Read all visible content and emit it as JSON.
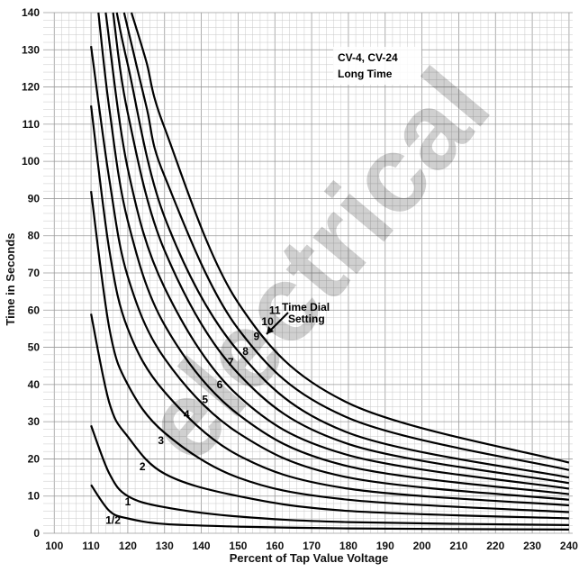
{
  "chart_data": {
    "type": "line",
    "title": "CV-4, CV-24",
    "subtitle": "Long Time",
    "xlabel": "Percent of Tap Value Voltage",
    "ylabel": "Time in Seconds",
    "xlim": [
      97,
      241
    ],
    "ylim": [
      0,
      140
    ],
    "x_ticks": [
      100,
      110,
      120,
      130,
      140,
      150,
      160,
      170,
      180,
      190,
      200,
      210,
      220,
      230,
      240
    ],
    "y_ticks": [
      0,
      10,
      20,
      30,
      40,
      50,
      60,
      70,
      80,
      90,
      100,
      110,
      120,
      130,
      140
    ],
    "grid": true,
    "annotation": {
      "line1": "Time Dial",
      "line2": "Setting"
    },
    "watermark": "electrical",
    "series": [
      {
        "name": "1/2",
        "label_at": [
          116,
          2.5
        ],
        "points": [
          [
            110,
            13
          ],
          [
            115,
            6
          ],
          [
            120,
            4
          ],
          [
            130,
            2.5
          ],
          [
            150,
            1.8
          ],
          [
            180,
            1.3
          ],
          [
            240,
            1.0
          ]
        ]
      },
      {
        "name": "1",
        "label_at": [
          120,
          7.5
        ],
        "points": [
          [
            110,
            29
          ],
          [
            115,
            16
          ],
          [
            120,
            10
          ],
          [
            130,
            7
          ],
          [
            150,
            4.5
          ],
          [
            180,
            3
          ],
          [
            240,
            2.2
          ]
        ]
      },
      {
        "name": "2",
        "label_at": [
          124,
          17
        ],
        "points": [
          [
            110,
            59
          ],
          [
            115,
            35
          ],
          [
            120,
            26
          ],
          [
            130,
            16
          ],
          [
            150,
            10
          ],
          [
            180,
            6
          ],
          [
            240,
            4.0
          ]
        ]
      },
      {
        "name": "3",
        "label_at": [
          129,
          24
        ],
        "points": [
          [
            110,
            92
          ],
          [
            115,
            55
          ],
          [
            120,
            40
          ],
          [
            130,
            27
          ],
          [
            150,
            15
          ],
          [
            180,
            9
          ],
          [
            240,
            5.7
          ]
        ]
      },
      {
        "name": "4",
        "label_at": [
          136,
          31
        ],
        "points": [
          [
            110,
            115
          ],
          [
            115,
            76
          ],
          [
            120,
            55
          ],
          [
            130,
            38
          ],
          [
            150,
            21
          ],
          [
            180,
            12
          ],
          [
            240,
            7.5
          ]
        ]
      },
      {
        "name": "5",
        "label_at": [
          141,
          35
        ],
        "points": [
          [
            110,
            131
          ],
          [
            115,
            95
          ],
          [
            120,
            69
          ],
          [
            130,
            47
          ],
          [
            150,
            27
          ],
          [
            180,
            15
          ],
          [
            240,
            9.0
          ]
        ]
      },
      {
        "name": "6",
        "label_at": [
          145,
          39
        ],
        "points": [
          [
            112,
            140
          ],
          [
            115,
            114
          ],
          [
            120,
            84
          ],
          [
            130,
            56
          ],
          [
            150,
            32
          ],
          [
            180,
            18
          ],
          [
            240,
            10.5
          ]
        ]
      },
      {
        "name": "7",
        "label_at": [
          148,
          45
        ],
        "points": [
          [
            114,
            140
          ],
          [
            120,
            98
          ],
          [
            130,
            66
          ],
          [
            150,
            37
          ],
          [
            180,
            21
          ],
          [
            240,
            12
          ]
        ]
      },
      {
        "name": "8",
        "label_at": [
          152,
          48
        ],
        "points": [
          [
            116,
            140
          ],
          [
            120,
            113
          ],
          [
            130,
            76
          ],
          [
            150,
            43
          ],
          [
            180,
            24
          ],
          [
            240,
            13.5
          ]
        ]
      },
      {
        "name": "9",
        "label_at": [
          155,
          52
        ],
        "points": [
          [
            117,
            140
          ],
          [
            120,
            126
          ],
          [
            130,
            85
          ],
          [
            150,
            49
          ],
          [
            180,
            27
          ],
          [
            240,
            15
          ]
        ]
      },
      {
        "name": "10",
        "label_at": [
          158,
          56
        ],
        "points": [
          [
            119,
            140
          ],
          [
            125,
            115
          ],
          [
            130,
            96
          ],
          [
            150,
            55
          ],
          [
            180,
            31
          ],
          [
            240,
            17
          ]
        ]
      },
      {
        "name": "11",
        "label_at": [
          160,
          59
        ],
        "points": [
          [
            121,
            140
          ],
          [
            125,
            127
          ],
          [
            130,
            109
          ],
          [
            150,
            62
          ],
          [
            180,
            35
          ],
          [
            240,
            19
          ]
        ]
      }
    ]
  }
}
